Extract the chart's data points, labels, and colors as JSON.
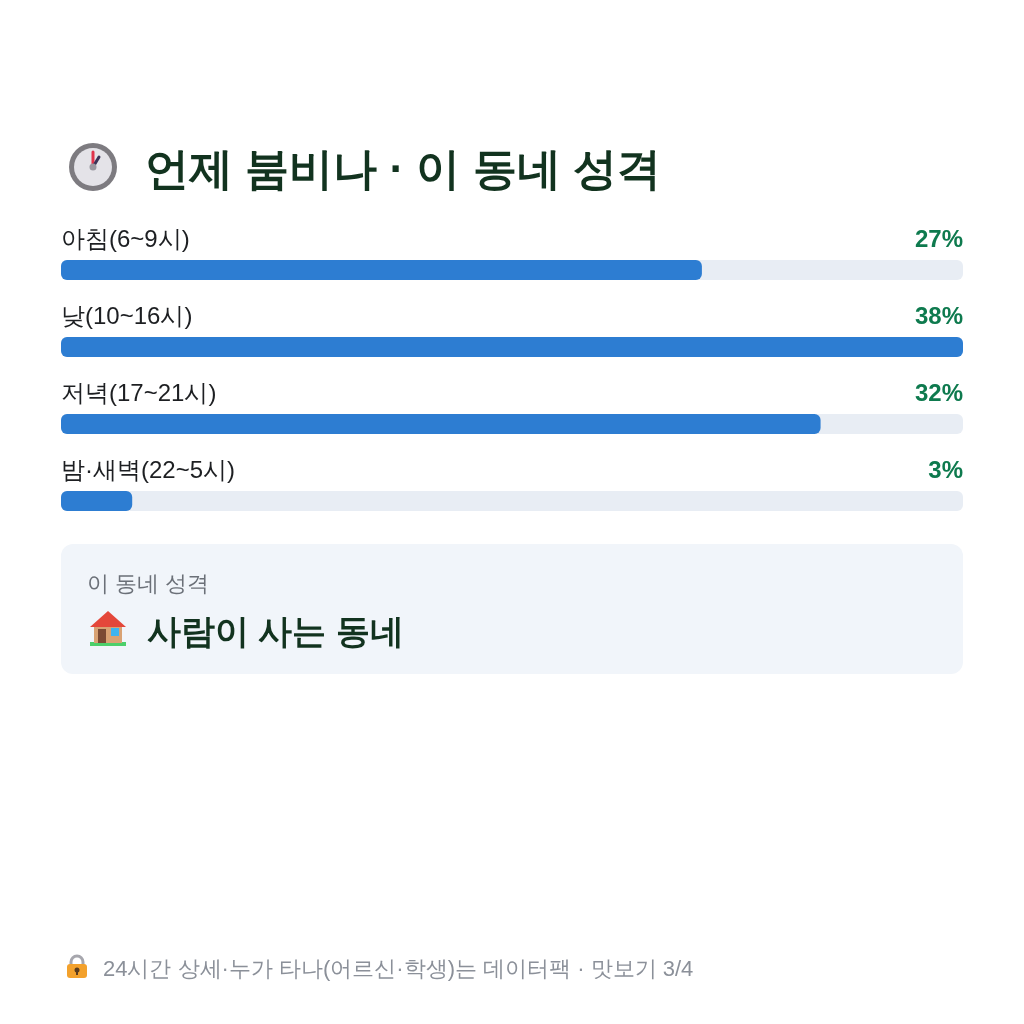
{
  "chart_data": [
    {
      "type": "bar",
      "orientation": "horizontal",
      "title": "언제 붐비나 · 이 동네 성격",
      "categories": [
        "아침(6~9시)",
        "낮(10~16시)",
        "저녁(17~21시)",
        "밤·새벽(22~5시)"
      ],
      "values": [
        27,
        38,
        32,
        3
      ],
      "value_labels": [
        "27%",
        "38%",
        "32%",
        "3%"
      ],
      "color": "#2d7dd2",
      "annotations": [
        "24시간 상세·누가 타나(어르신·학생)는 데이터팩 · 맛보기 3/4"
      ]
    },
    {
      "type": "other",
      "annotations": [
        "이 동네 성격",
        "사람이 사는 동네"
      ]
    }
  ]
}
